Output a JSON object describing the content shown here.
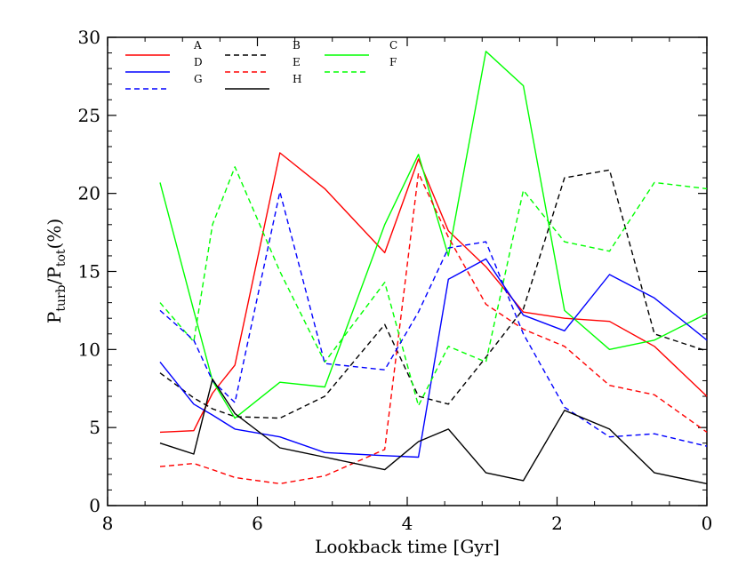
{
  "chart_data": {
    "type": "line",
    "xlabel": "Lookback time [Gyr]",
    "ylabel": {
      "main": "P",
      "sub1": "turb",
      "slash": "/P",
      "sub2": "tot",
      "tail": "(%)"
    },
    "xlim": [
      8,
      0
    ],
    "ylim": [
      0,
      30
    ],
    "x_ticks": [
      8,
      6,
      4,
      2,
      0
    ],
    "y_ticks": [
      0,
      5,
      10,
      15,
      20,
      25,
      30
    ],
    "grid": false,
    "legend_position": "top-left",
    "x": [
      7.3,
      6.85,
      6.6,
      6.3,
      5.7,
      5.1,
      4.3,
      3.85,
      3.45,
      2.95,
      2.45,
      1.9,
      1.3,
      0.7,
      0.0
    ],
    "series": [
      {
        "name": "A",
        "color": "#ff0000",
        "style": "solid",
        "values": [
          4.7,
          4.8,
          7.2,
          9.0,
          22.6,
          20.3,
          16.2,
          22.2,
          17.6,
          15.3,
          12.4,
          12.0,
          11.8,
          10.2,
          7.0
        ]
      },
      {
        "name": "B",
        "color": "#000000",
        "style": "dashed",
        "values": [
          8.5,
          6.9,
          6.2,
          5.7,
          5.6,
          7.0,
          11.6,
          7.0,
          6.5,
          9.5,
          12.6,
          21.0,
          21.5,
          11.0,
          9.9
        ]
      },
      {
        "name": "C",
        "color": "#00ff00",
        "style": "solid",
        "values": [
          20.7,
          12.5,
          8.0,
          5.6,
          7.9,
          7.6,
          18.0,
          22.5,
          16.0,
          29.1,
          26.9,
          12.5,
          10.0,
          10.6,
          12.3
        ]
      },
      {
        "name": "D",
        "color": "#0000ff",
        "style": "solid",
        "values": [
          9.2,
          6.5,
          5.8,
          4.9,
          4.4,
          3.4,
          3.2,
          3.1,
          14.5,
          15.8,
          12.2,
          11.2,
          14.8,
          13.3,
          10.6
        ]
      },
      {
        "name": "E",
        "color": "#ff0000",
        "style": "dashed",
        "values": [
          2.5,
          2.7,
          2.3,
          1.8,
          1.4,
          1.9,
          3.6,
          21.3,
          17.2,
          12.9,
          11.3,
          10.2,
          7.7,
          7.1,
          4.7
        ]
      },
      {
        "name": "F",
        "color": "#00ff00",
        "style": "dashed",
        "values": [
          13.0,
          10.5,
          18.0,
          21.7,
          15.0,
          9.2,
          14.3,
          6.4,
          10.2,
          9.2,
          20.2,
          16.9,
          16.3,
          20.7,
          20.3
        ]
      },
      {
        "name": "G",
        "color": "#0000ff",
        "style": "dashed",
        "values": [
          12.5,
          10.6,
          8.0,
          6.6,
          20.1,
          9.1,
          8.7,
          12.4,
          16.5,
          16.9,
          11.0,
          6.3,
          4.4,
          4.6,
          3.8
        ]
      },
      {
        "name": "H",
        "color": "#000000",
        "style": "solid",
        "values": [
          4.0,
          3.3,
          8.1,
          5.9,
          3.7,
          3.1,
          2.3,
          4.1,
          4.9,
          2.1,
          1.6,
          6.1,
          4.9,
          2.1,
          1.4
        ]
      }
    ],
    "legend_rows": [
      [
        "A",
        "B",
        "C"
      ],
      [
        "D",
        "E",
        "F"
      ],
      [
        "G",
        "H"
      ]
    ]
  }
}
